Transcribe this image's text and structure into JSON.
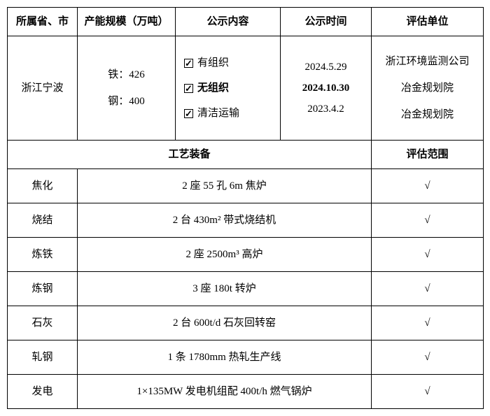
{
  "header": {
    "province": "所属省、市",
    "capacity": "产能规模（万吨）",
    "content": "公示内容",
    "date": "公示时间",
    "org": "评估单位"
  },
  "top": {
    "province": "浙江宁波",
    "cap_iron": "铁：426",
    "cap_steel": "钢：400",
    "chk1": "有组织",
    "chk2": "无组织",
    "chk3": "清洁运输",
    "date1": "2024.5.29",
    "date2": "2024.10.30",
    "date3": "2023.4.2",
    "org1": "浙江环境监测公司",
    "org2": "冶金规划院",
    "org3": "冶金规划院"
  },
  "subheader": {
    "equip": "工艺装备",
    "scope": "评估范围"
  },
  "rows": [
    {
      "name": "焦化",
      "desc": "2 座 55 孔 6m 焦炉",
      "mark": "√"
    },
    {
      "name": "烧结",
      "desc": "2 台 430m² 带式烧结机",
      "mark": "√"
    },
    {
      "name": "炼铁",
      "desc": "2 座 2500m³ 高炉",
      "mark": "√"
    },
    {
      "name": "炼钢",
      "desc": "3 座 180t 转炉",
      "mark": "√"
    },
    {
      "name": "石灰",
      "desc": "2 台 600t/d 石灰回转窑",
      "mark": "√"
    },
    {
      "name": "轧钢",
      "desc": "1 条 1780mm 热轧生产线",
      "mark": "√"
    },
    {
      "name": "发电",
      "desc": "1×135MW 发电机组配 400t/h 燃气锅炉",
      "mark": "√"
    }
  ]
}
